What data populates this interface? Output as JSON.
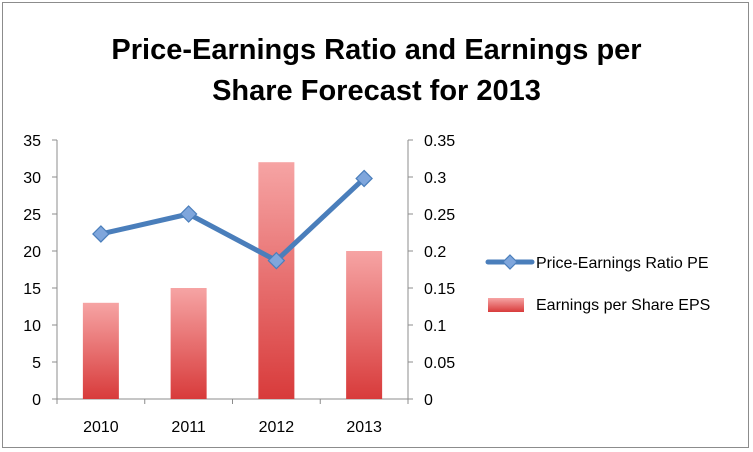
{
  "chart_data": {
    "type": "bar+line",
    "title_line1": "Price-Earnings Ratio and Earnings per",
    "title_line2": "Share Forecast for 2013",
    "categories": [
      "2010",
      "2011",
      "2012",
      "2013"
    ],
    "left_axis": {
      "min": 0,
      "max": 35,
      "step": 5,
      "tick_labels": [
        "0",
        "5",
        "10",
        "15",
        "20",
        "25",
        "30",
        "35"
      ]
    },
    "right_axis": {
      "min": 0,
      "max": 0.35,
      "step": 0.05,
      "tick_labels": [
        "0",
        "0.05",
        "0.1",
        "0.15",
        "0.2",
        "0.25",
        "0.3",
        "0.35"
      ]
    },
    "series": [
      {
        "name": "Price-Earnings Ratio PE",
        "kind": "line",
        "axis": "left",
        "color": "#4a7ebb",
        "marker_color": "#7fa6dc",
        "values": [
          22.3,
          25.0,
          18.7,
          29.8
        ]
      },
      {
        "name": "Earnings per Share EPS",
        "kind": "bar",
        "axis": "right",
        "color_top": "#f6a4a4",
        "color_bottom": "#d83b3b",
        "values": [
          0.13,
          0.15,
          0.32,
          0.2
        ]
      }
    ],
    "legend_position": "right",
    "grid": false
  }
}
